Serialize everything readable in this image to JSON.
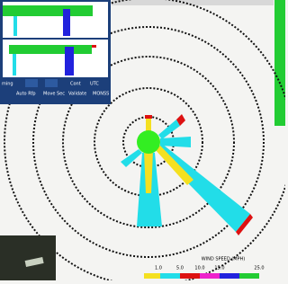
{
  "window": {
    "buttons_row1": [
      "ming",
      "Cont",
      "UTC"
    ],
    "buttons_row2": [
      "Auto Rfp",
      "Move Sec",
      "Validate",
      "MONSS"
    ]
  },
  "wind_rose": {
    "legend_title": "WIND SPEED (MPH)",
    "legend_labels": [
      "1.0",
      "5.0",
      "10.0",
      "15.0",
      "25.0"
    ]
  }
}
